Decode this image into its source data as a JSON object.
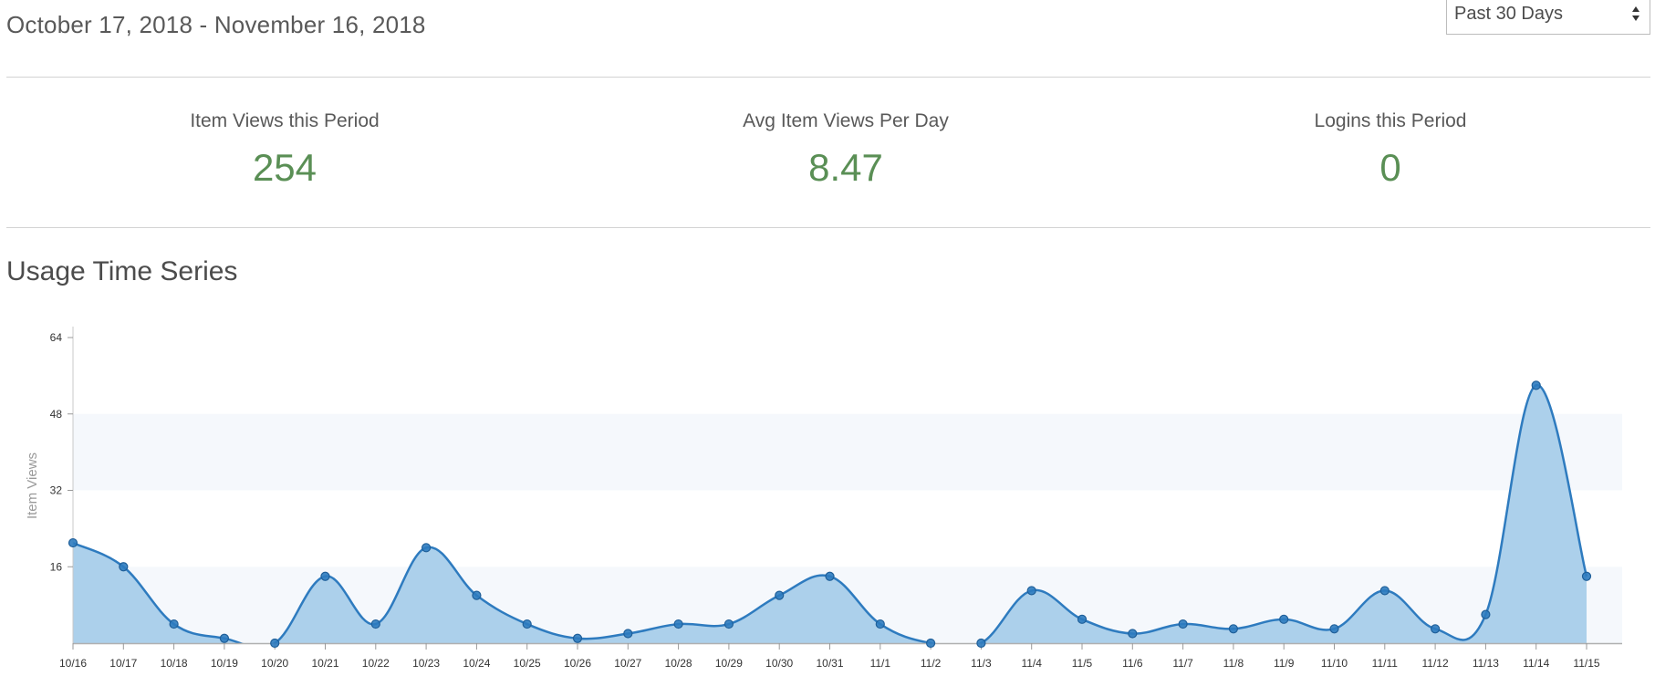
{
  "header": {
    "date_range": "October 17, 2018 - November 16, 2018",
    "period_select": {
      "value": "Past 30 Days"
    }
  },
  "stats": [
    {
      "label": "Item Views this Period",
      "value": "254"
    },
    {
      "label": "Avg Item Views Per Day",
      "value": "8.47"
    },
    {
      "label": "Logins this Period",
      "value": "0"
    }
  ],
  "section_title": "Usage Time Series",
  "chart_data": {
    "type": "area",
    "title": "",
    "xlabel": "",
    "ylabel": "Item Views",
    "ylim": [
      0,
      64
    ],
    "yticks": [
      16,
      32,
      48,
      64
    ],
    "grid_bands": true,
    "categories": [
      "10/16",
      "10/17",
      "10/18",
      "10/19",
      "10/20",
      "10/21",
      "10/22",
      "10/23",
      "10/24",
      "10/25",
      "10/26",
      "10/27",
      "10/28",
      "10/29",
      "10/30",
      "10/31",
      "11/1",
      "11/2",
      "11/3",
      "11/4",
      "11/5",
      "11/6",
      "11/7",
      "11/8",
      "11/9",
      "11/10",
      "11/11",
      "11/12",
      "11/13",
      "11/14",
      "11/15"
    ],
    "series": [
      {
        "values": [
          21,
          16,
          4,
          1,
          0,
          14,
          4,
          20,
          10,
          4,
          1,
          2,
          4,
          4,
          10,
          14,
          4,
          0,
          0,
          11,
          5,
          2,
          4,
          3,
          5,
          3,
          11,
          3,
          6,
          54,
          14
        ],
        "color": "#2e7bbf",
        "fill": "#a8cdea"
      }
    ]
  }
}
